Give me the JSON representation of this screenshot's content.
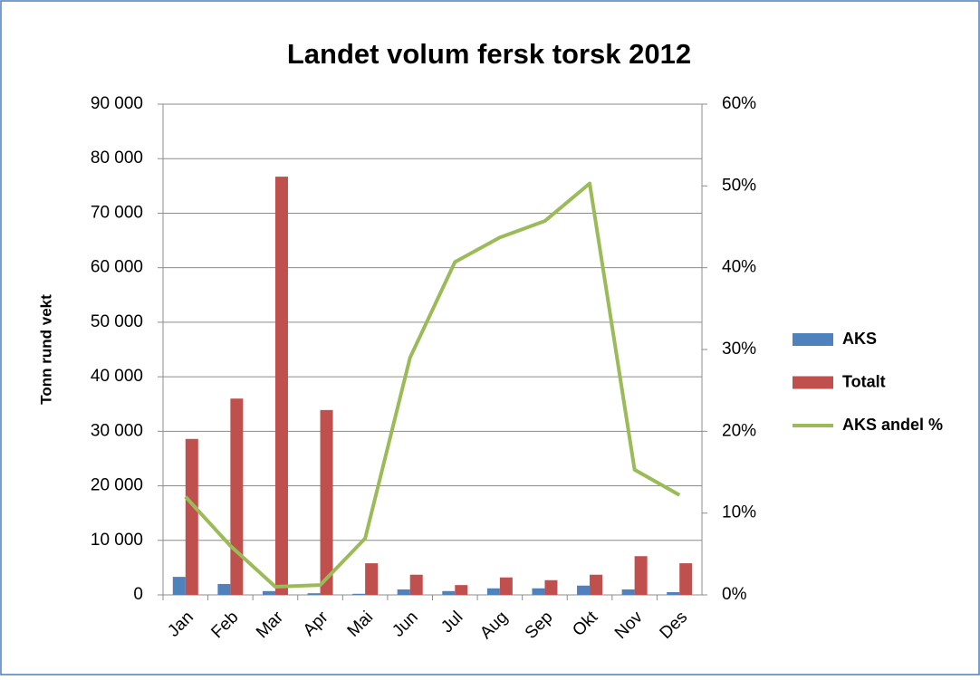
{
  "chart_data": {
    "type": "bar_line",
    "title": "Landet volum fersk torsk 2012",
    "y_label": "Tonn rund vekt",
    "categories": [
      "Jan",
      "Feb",
      "Mar",
      "Apr",
      "Mai",
      "Jun",
      "Jul",
      "Aug",
      "Sep",
      "Okt",
      "Nov",
      "Des"
    ],
    "series": [
      {
        "name": "AKS",
        "color": "#4f81bd",
        "type": "bar",
        "values": [
          3300,
          2000,
          700,
          300,
          200,
          1000,
          700,
          1200,
          1200,
          1700,
          1000,
          500
        ]
      },
      {
        "name": "Totalt",
        "color": "#c0504d",
        "type": "bar",
        "values": [
          28600,
          36000,
          76700,
          33900,
          5800,
          3700,
          1800,
          3200,
          2700,
          3700,
          7100,
          5800
        ]
      },
      {
        "name": "AKS andel %",
        "color": "#9bbb59",
        "type": "line",
        "axis": "y2",
        "values": [
          12,
          6,
          1,
          1.2,
          6.9,
          29,
          40.7,
          43.7,
          45.7,
          50.3,
          15.3,
          12.2
        ]
      }
    ],
    "ylim": [
      0,
      90000
    ],
    "yticks": [
      {
        "value": 0,
        "label": "0"
      },
      {
        "value": 10000,
        "label": "10 000"
      },
      {
        "value": 20000,
        "label": "20 000"
      },
      {
        "value": 30000,
        "label": "30 000"
      },
      {
        "value": 40000,
        "label": "40 000"
      },
      {
        "value": 50000,
        "label": "50 000"
      },
      {
        "value": 60000,
        "label": "60 000"
      },
      {
        "value": 70000,
        "label": "70 000"
      },
      {
        "value": 80000,
        "label": "80 000"
      },
      {
        "value": 90000,
        "label": "90 000"
      }
    ],
    "y2lim": [
      0,
      60
    ],
    "y2ticks": [
      {
        "value": 0,
        "label": "0%"
      },
      {
        "value": 10,
        "label": "10%"
      },
      {
        "value": 20,
        "label": "20%"
      },
      {
        "value": 30,
        "label": "30%"
      },
      {
        "value": 40,
        "label": "40%"
      },
      {
        "value": 50,
        "label": "50%"
      },
      {
        "value": 60,
        "label": "60%"
      }
    ],
    "grid": true,
    "legend": "right"
  }
}
